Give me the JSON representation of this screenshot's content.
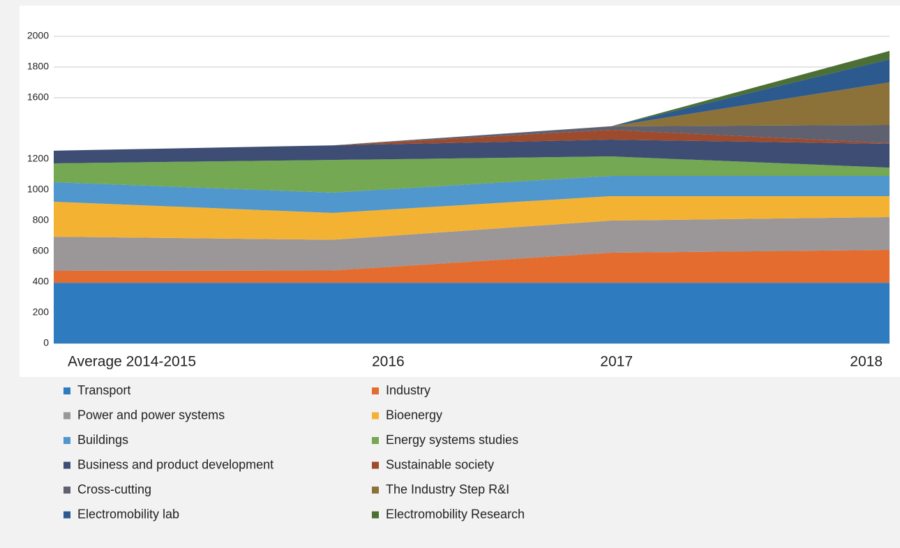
{
  "chart_data": {
    "type": "stacked-area",
    "categories": [
      "Average 2014-2015",
      "2016",
      "2017",
      "2018"
    ],
    "ylim": [
      0,
      2000
    ],
    "yticks": [
      0,
      200,
      400,
      600,
      800,
      1000,
      1200,
      1600,
      1800,
      2000
    ],
    "grid": true,
    "series": [
      {
        "name": "Transport",
        "color": "#2e7bc0",
        "values": [
          395,
          395,
          395,
          395
        ]
      },
      {
        "name": "Industry",
        "color": "#e46c2e",
        "values": [
          78,
          80,
          196,
          214
        ]
      },
      {
        "name": "Power and power systems",
        "color": "#9b9698",
        "values": [
          222,
          200,
          209,
          214
        ]
      },
      {
        "name": "Bioenergy",
        "color": "#f4b233",
        "values": [
          228,
          175,
          159,
          136
        ]
      },
      {
        "name": "Buildings",
        "color": "#4f97cd",
        "values": [
          127,
          132,
          132,
          132
        ]
      },
      {
        "name": "Energy systems studies",
        "color": "#74a853",
        "values": [
          123,
          213,
          127,
          54
        ]
      },
      {
        "name": "Business and product development",
        "color": "#3d4d73",
        "values": [
          82,
          95,
          109,
          155
        ]
      },
      {
        "name": "Sustainable society",
        "color": "#9e4a2d",
        "values": [
          0,
          0,
          64,
          5
        ]
      },
      {
        "name": "Cross-cutting",
        "color": "#5f6070",
        "values": [
          0,
          0,
          23,
          118
        ]
      },
      {
        "name": "The Industry Step R&I",
        "color": "#8c7239",
        "values": [
          0,
          0,
          0,
          277
        ]
      },
      {
        "name": "Electromobility lab",
        "color": "#2c5a8e",
        "values": [
          0,
          0,
          0,
          150
        ]
      },
      {
        "name": "Electromobility Research",
        "color": "#4b6f34",
        "values": [
          0,
          0,
          0,
          55
        ]
      }
    ]
  }
}
